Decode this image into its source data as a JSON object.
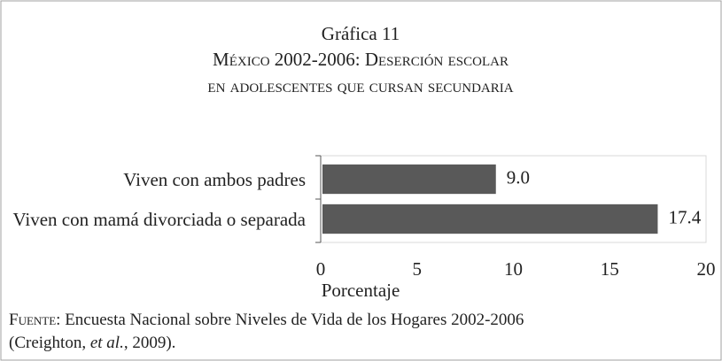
{
  "chart_data": {
    "type": "bar",
    "orientation": "horizontal",
    "title": "Gráfica 11",
    "subtitle": [
      "México 2002-2006: Deserción escolar",
      "en adolescentes que cursan secundaria"
    ],
    "categories": [
      "Viven con ambos padres",
      "Viven con mamá divorciada o separada"
    ],
    "values": [
      9.0,
      17.4
    ],
    "value_labels": [
      "9.0",
      "17.4"
    ],
    "color": "#595959",
    "xlim": [
      0,
      20
    ],
    "xticks": [
      0,
      5,
      10,
      15,
      20
    ],
    "xlabel": "Porcentaje",
    "source": [
      "Fuente",
      ": Encuesta Nacional sobre Niveles de Vida de los Hogares 2002-2006",
      "(Creighton, ",
      "et al.",
      ", 2009)."
    ]
  }
}
